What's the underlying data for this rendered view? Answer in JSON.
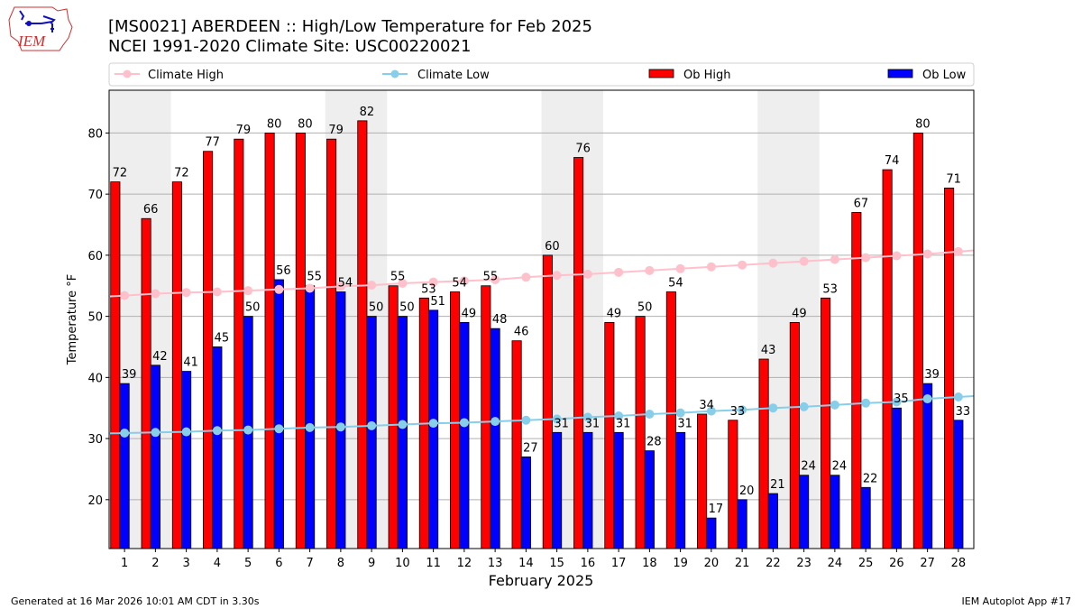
{
  "logo": {
    "text": "IEM"
  },
  "chart_data": {
    "type": "bar",
    "title": "[MS0021] ABERDEEN :: High/Low Temperature for Feb 2025",
    "subtitle": "NCEI 1991-2020 Climate Site: USC00220021",
    "xlabel": "February 2025",
    "ylabel": "Temperature °F",
    "xlim": [
      0.5,
      28.5
    ],
    "ylim": [
      12,
      87
    ],
    "yticks": [
      20,
      30,
      40,
      50,
      60,
      70,
      80
    ],
    "grid": "y",
    "legend": {
      "placement": "top",
      "entries": [
        "Climate High",
        "Climate Low",
        "Ob High",
        "Ob Low"
      ]
    },
    "shaded_periods": [
      [
        1,
        2
      ],
      [
        8,
        9
      ],
      [
        15,
        16
      ],
      [
        22,
        23
      ]
    ],
    "categories": [
      1,
      2,
      3,
      4,
      5,
      6,
      7,
      8,
      9,
      10,
      11,
      12,
      13,
      14,
      15,
      16,
      17,
      18,
      19,
      20,
      21,
      22,
      23,
      24,
      25,
      26,
      27,
      28
    ],
    "series": [
      {
        "name": "Ob High",
        "kind": "bar",
        "color": "#ff0000",
        "values": [
          72,
          66,
          72,
          77,
          79,
          80,
          80,
          79,
          82,
          55,
          53,
          54,
          55,
          46,
          60,
          76,
          49,
          50,
          54,
          34,
          33,
          43,
          49,
          53,
          67,
          74,
          80,
          71
        ]
      },
      {
        "name": "Ob Low",
        "kind": "bar",
        "color": "#0000ff",
        "values": [
          39,
          42,
          41,
          45,
          50,
          56,
          55,
          54,
          50,
          50,
          51,
          49,
          48,
          27,
          31,
          31,
          31,
          28,
          31,
          17,
          20,
          21,
          24,
          24,
          22,
          35,
          39,
          33
        ]
      },
      {
        "name": "Climate High",
        "kind": "line",
        "color": "#ffc0cb",
        "values": [
          53.4,
          53.7,
          53.9,
          54.0,
          54.2,
          54.4,
          54.6,
          54.9,
          55.1,
          55.4,
          55.6,
          55.8,
          56.0,
          56.4,
          56.7,
          56.9,
          57.2,
          57.5,
          57.8,
          58.1,
          58.4,
          58.7,
          59.0,
          59.3,
          59.6,
          59.9,
          60.2,
          60.6
        ]
      },
      {
        "name": "Climate Low",
        "kind": "line",
        "color": "#87ceeb",
        "values": [
          30.9,
          31.0,
          31.1,
          31.3,
          31.4,
          31.6,
          31.8,
          31.9,
          32.1,
          32.3,
          32.5,
          32.6,
          32.8,
          33.0,
          33.2,
          33.5,
          33.7,
          34.0,
          34.2,
          34.5,
          34.7,
          35.0,
          35.2,
          35.5,
          35.8,
          36.0,
          36.5,
          36.8
        ]
      }
    ]
  },
  "footer": {
    "generated": "Generated at 16 Mar 2026 10:01 AM CDT in 3.30s",
    "app": "IEM Autoplot App #17"
  }
}
